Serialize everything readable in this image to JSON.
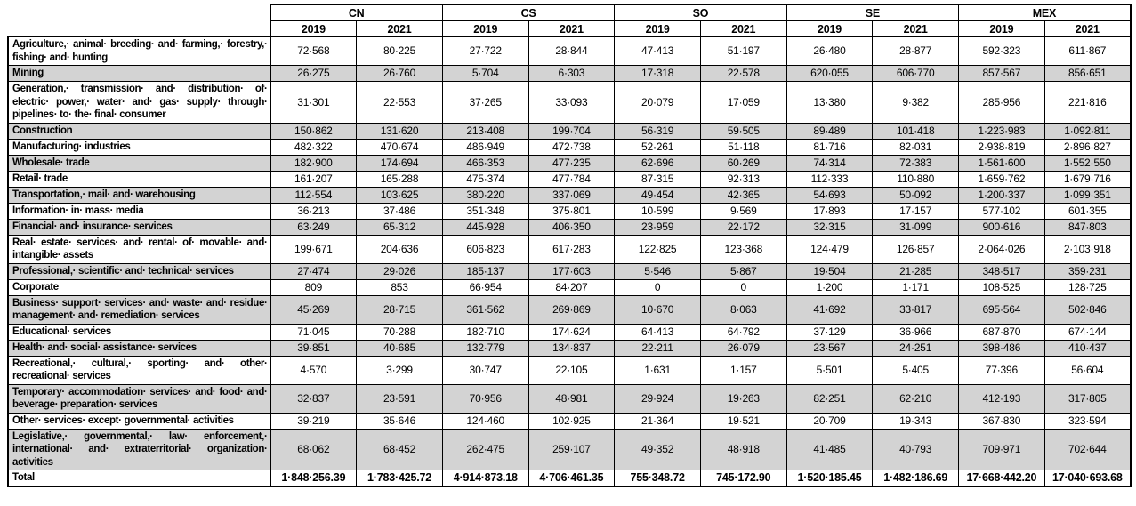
{
  "colors": {
    "stripe_bg": "#d3d3d3",
    "border": "#000000",
    "text": "#000000",
    "background": "#ffffff"
  },
  "table": {
    "groups": [
      "CN",
      "CS",
      "SO",
      "SE",
      "MEX"
    ],
    "year_headers": [
      "2019",
      "2021",
      "2019",
      "2021",
      "2019",
      "2021",
      "2019",
      "2021",
      "2019",
      "2021"
    ],
    "rows": [
      {
        "label": "Agriculture,· animal· breeding· and· farming,· forestry,· fishing· and· hunting",
        "values": [
          "72·568",
          "80·225",
          "27·722",
          "28·844",
          "47·413",
          "51·197",
          "26·480",
          "28·877",
          "592·323",
          "611·867"
        ]
      },
      {
        "label": "Mining",
        "values": [
          "26·275",
          "26·760",
          "5·704",
          "6·303",
          "17·318",
          "22·578",
          "620·055",
          "606·770",
          "857·567",
          "856·651"
        ]
      },
      {
        "label": "Generation,· transmission· and· distribution· of· electric· power,· water· and· gas· supply· through· pipelines· to· the· final· consumer",
        "values": [
          "31·301",
          "22·553",
          "37·265",
          "33·093",
          "20·079",
          "17·059",
          "13·380",
          "9·382",
          "285·956",
          "221·816"
        ]
      },
      {
        "label": "Construction",
        "values": [
          "150·862",
          "131·620",
          "213·408",
          "199·704",
          "56·319",
          "59·505",
          "89·489",
          "101·418",
          "1·223·983",
          "1·092·811"
        ]
      },
      {
        "label": "Manufacturing· industries",
        "values": [
          "482·322",
          "470·674",
          "486·949",
          "472·738",
          "52·261",
          "51·118",
          "81·716",
          "82·031",
          "2·938·819",
          "2·896·827"
        ]
      },
      {
        "label": "Wholesale· trade",
        "values": [
          "182·900",
          "174·694",
          "466·353",
          "477·235",
          "62·696",
          "60·269",
          "74·314",
          "72·383",
          "1·561·600",
          "1·552·550"
        ]
      },
      {
        "label": "Retail· trade",
        "values": [
          "161·207",
          "165·288",
          "475·374",
          "477·784",
          "87·315",
          "92·313",
          "112·333",
          "110·880",
          "1·659·762",
          "1·679·716"
        ]
      },
      {
        "label": "Transportation,· mail· and· warehousing",
        "values": [
          "112·554",
          "103·625",
          "380·220",
          "337·069",
          "49·454",
          "42·365",
          "54·693",
          "50·092",
          "1·200·337",
          "1·099·351"
        ]
      },
      {
        "label": "Information· in· mass· media",
        "values": [
          "36·213",
          "37·486",
          "351·348",
          "375·801",
          "10·599",
          "9·569",
          "17·893",
          "17·157",
          "577·102",
          "601·355"
        ]
      },
      {
        "label": "Financial· and· insurance· services",
        "values": [
          "63·249",
          "65·312",
          "445·928",
          "406·350",
          "23·959",
          "22·172",
          "32·315",
          "31·099",
          "900·616",
          "847·803"
        ]
      },
      {
        "label": "Real· estate· services· and· rental· of· movable· and· intangible· assets",
        "values": [
          "199·671",
          "204·636",
          "606·823",
          "617·283",
          "122·825",
          "123·368",
          "124·479",
          "126·857",
          "2·064·026",
          "2·103·918"
        ]
      },
      {
        "label": "Professional,· scientific· and· technical· services",
        "values": [
          "27·474",
          "29·026",
          "185·137",
          "177·603",
          "5·546",
          "5·867",
          "19·504",
          "21·285",
          "348·517",
          "359·231"
        ]
      },
      {
        "label": "Corporate",
        "values": [
          "809",
          "853",
          "66·954",
          "84·207",
          "0",
          "0",
          "1·200",
          "1·171",
          "108·525",
          "128·725"
        ]
      },
      {
        "label": "Business· support· services· and· waste· and· residue· management· and· remediation· services",
        "values": [
          "45·269",
          "28·715",
          "361·562",
          "269·869",
          "10·670",
          "8·063",
          "41·692",
          "33·817",
          "695·564",
          "502·846"
        ]
      },
      {
        "label": "Educational· services",
        "values": [
          "71·045",
          "70·288",
          "182·710",
          "174·624",
          "64·413",
          "64·792",
          "37·129",
          "36·966",
          "687·870",
          "674·144"
        ]
      },
      {
        "label": "Health· and· social· assistance· services",
        "values": [
          "39·851",
          "40·685",
          "132·779",
          "134·837",
          "22·211",
          "26·079",
          "23·567",
          "24·251",
          "398·486",
          "410·437"
        ]
      },
      {
        "label": "Recreational,· cultural,· sporting· and· other· recreational· services",
        "values": [
          "4·570",
          "3·299",
          "30·747",
          "22·105",
          "1·631",
          "1·157",
          "5·501",
          "5·405",
          "77·396",
          "56·604"
        ]
      },
      {
        "label": "Temporary· accommodation· services· and· food· and· beverage· preparation· services",
        "values": [
          "32·837",
          "23·591",
          "70·956",
          "48·981",
          "29·924",
          "19·263",
          "82·251",
          "62·210",
          "412·193",
          "317·805"
        ]
      },
      {
        "label": "Other· services· except· governmental· activities",
        "values": [
          "39·219",
          "35·646",
          "124·460",
          "102·925",
          "21·364",
          "19·521",
          "20·709",
          "19·343",
          "367·830",
          "323·594"
        ]
      },
      {
        "label": "Legislative,· governmental,· law· enforcement,· international· and· extraterritorial· organization· activities",
        "values": [
          "68·062",
          "68·452",
          "262·475",
          "259·107",
          "49·352",
          "48·918",
          "41·485",
          "40·793",
          "709·971",
          "702·644"
        ]
      }
    ],
    "total_row": {
      "label": "Total",
      "values": [
        "1·848·256.39",
        "1·783·425.72",
        "4·914·873.18",
        "4·706·461.35",
        "755·348.72",
        "745·172.90",
        "1·520·185.45",
        "1·482·186.69",
        "17·668·442.20",
        "17·040·693.68"
      ]
    }
  }
}
